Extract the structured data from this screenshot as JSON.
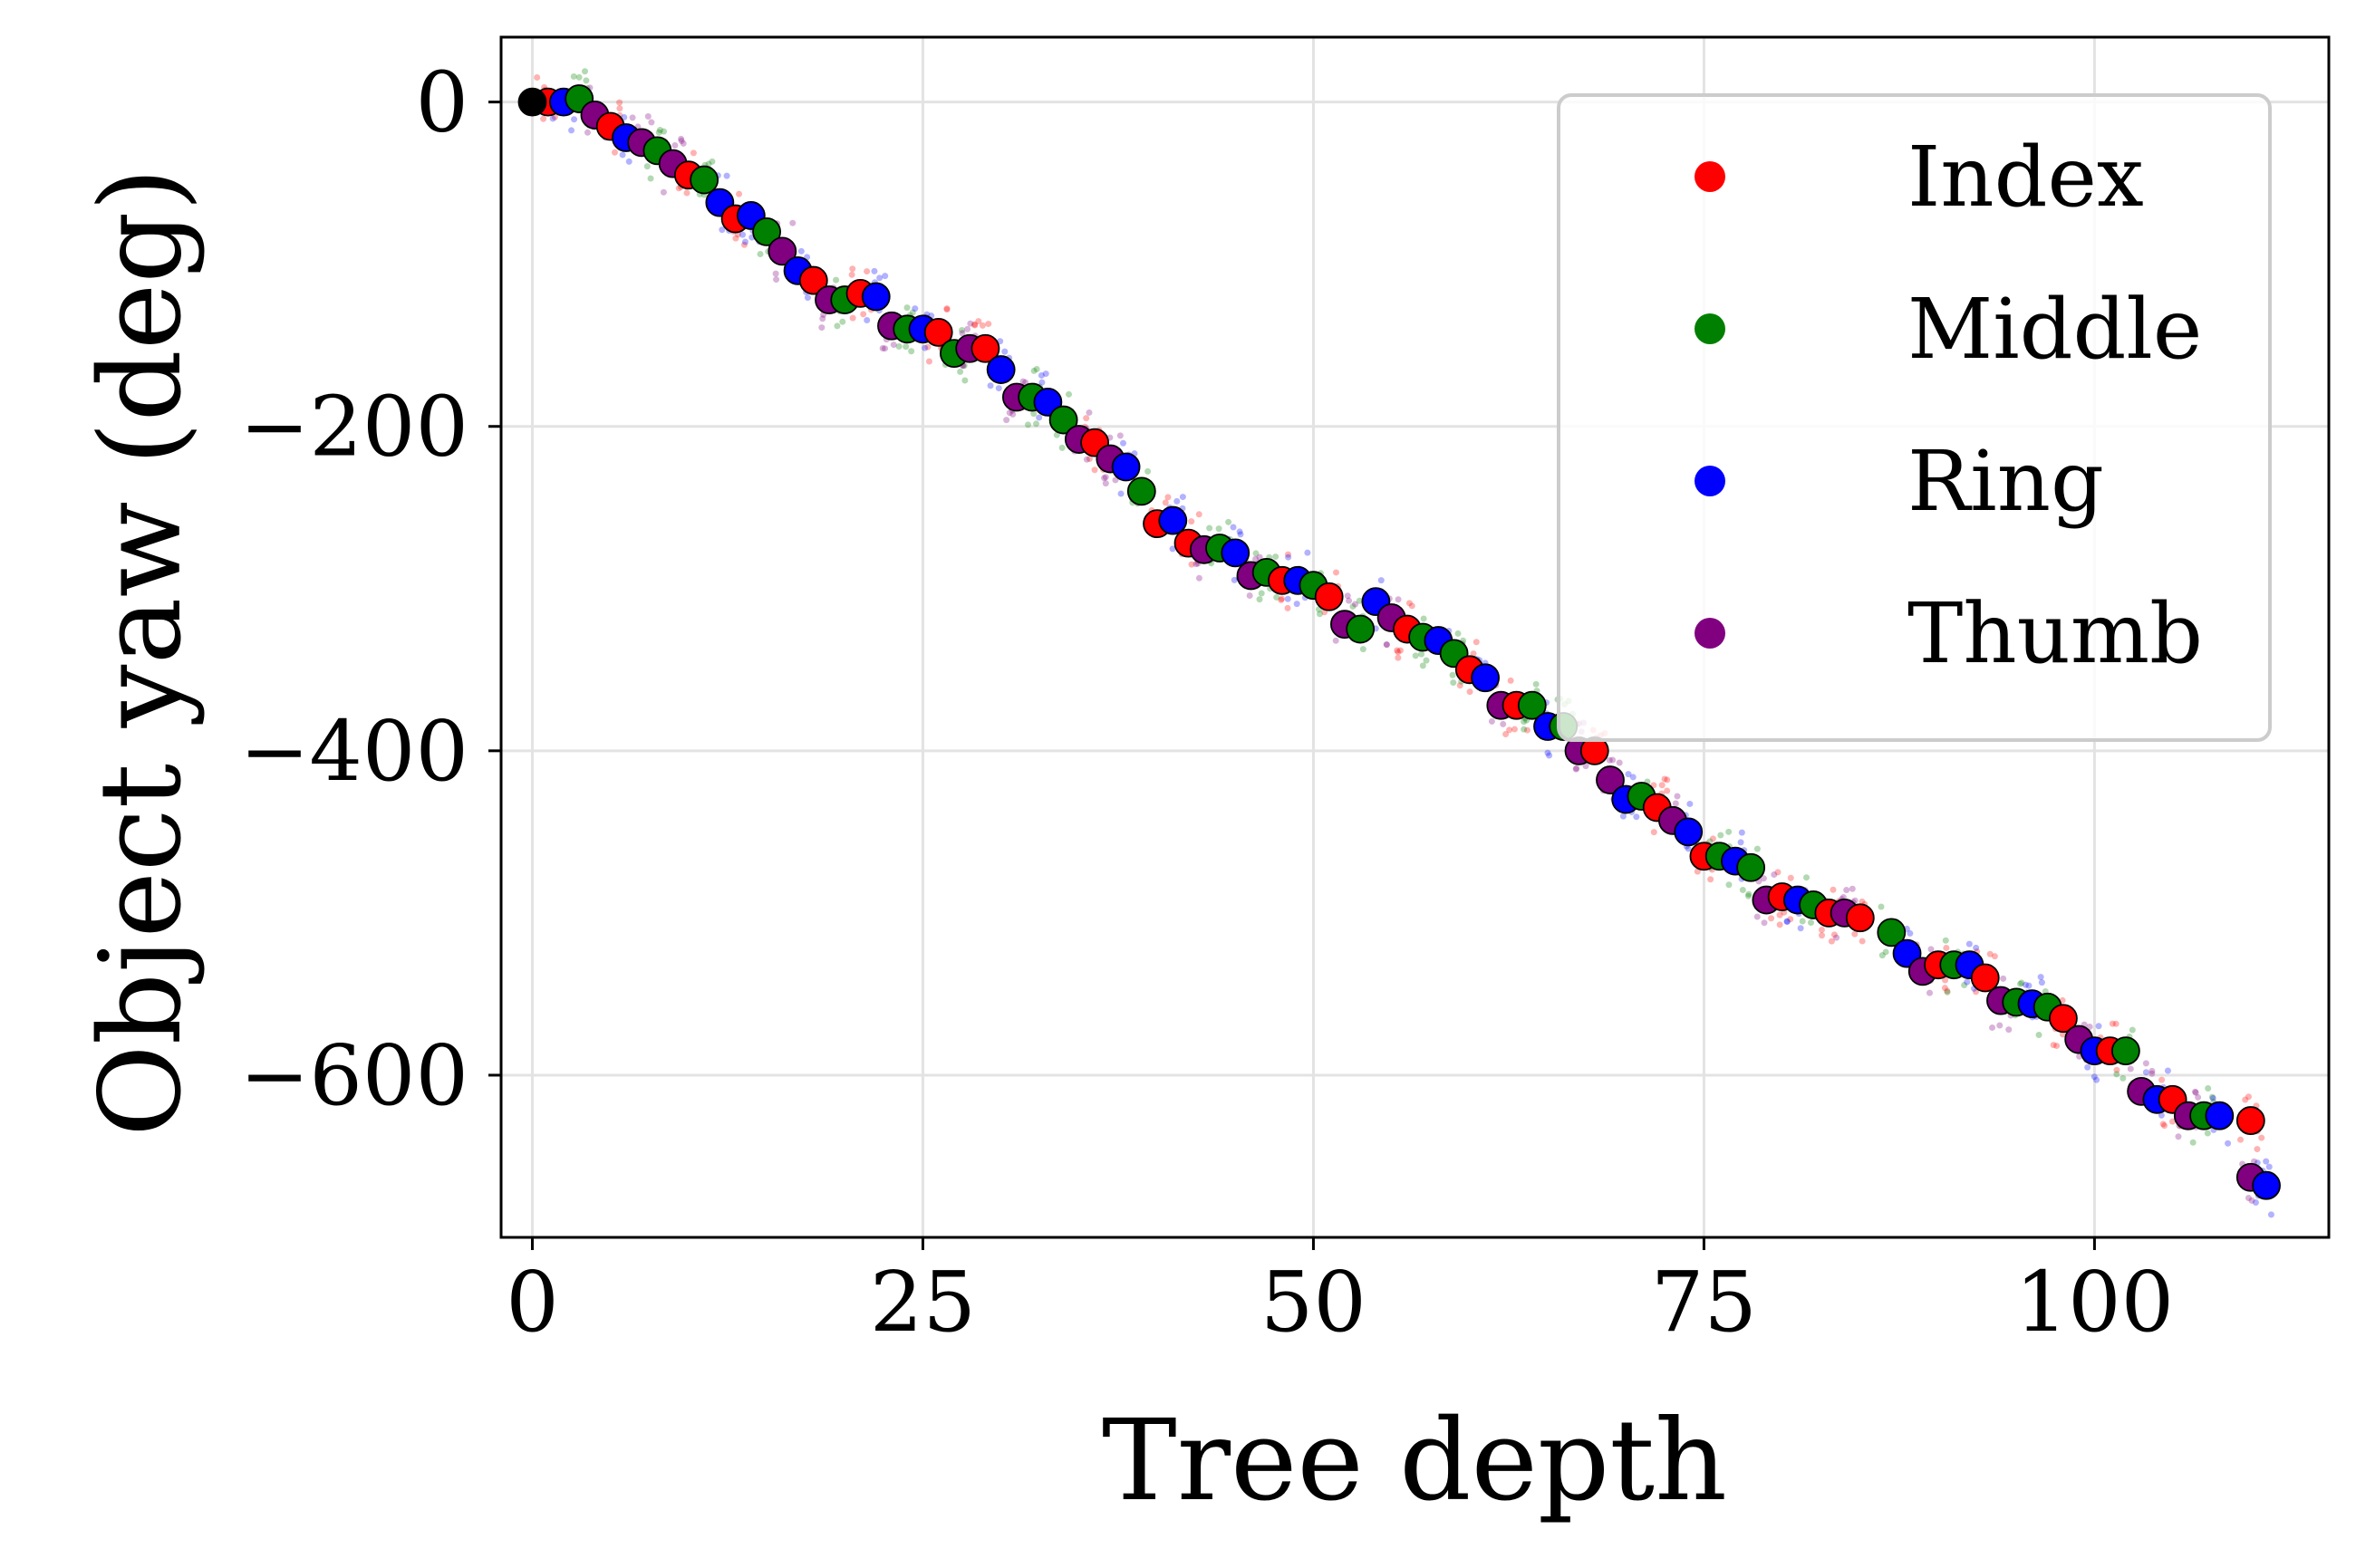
{
  "chart_data": {
    "type": "scatter",
    "xlabel": "Tree depth",
    "ylabel": "Object yaw (deg)",
    "xlim": [
      -2,
      115
    ],
    "ylim": [
      -700,
      40
    ],
    "xticks": [
      0,
      25,
      50,
      75,
      100
    ],
    "xtick_labels": [
      "0",
      "25",
      "50",
      "75",
      "100"
    ],
    "yticks": [
      0,
      -200,
      -400,
      -600
    ],
    "ytick_labels": [
      "0",
      "−200",
      "−400",
      "−600"
    ],
    "grid": true,
    "legend_position": "top-right",
    "root": {
      "x": 0,
      "y": 0,
      "color": "#000000"
    },
    "series": [
      {
        "name": "Index",
        "color": "#ff0000",
        "points": [
          [
            1,
            0
          ],
          [
            5,
            -15
          ],
          [
            10,
            -45
          ],
          [
            13,
            -72
          ],
          [
            18,
            -110
          ],
          [
            21,
            -118
          ],
          [
            26,
            -142
          ],
          [
            29,
            -152
          ],
          [
            36,
            -210
          ],
          [
            40,
            -260
          ],
          [
            42,
            -272
          ],
          [
            48,
            -295
          ],
          [
            51,
            -305
          ],
          [
            56,
            -325
          ],
          [
            60,
            -350
          ],
          [
            63,
            -372
          ],
          [
            68,
            -400
          ],
          [
            72,
            -435
          ],
          [
            75,
            -465
          ],
          [
            80,
            -490
          ],
          [
            83,
            -500
          ],
          [
            85,
            -503
          ],
          [
            90,
            -532
          ],
          [
            93,
            -540
          ],
          [
            98,
            -565
          ],
          [
            101,
            -585
          ],
          [
            105,
            -615
          ],
          [
            110,
            -628
          ]
        ]
      },
      {
        "name": "Middle",
        "color": "#008000",
        "points": [
          [
            3,
            2
          ],
          [
            8,
            -30
          ],
          [
            11,
            -48
          ],
          [
            15,
            -80
          ],
          [
            20,
            -122
          ],
          [
            24,
            -140
          ],
          [
            27,
            -155
          ],
          [
            32,
            -182
          ],
          [
            34,
            -196
          ],
          [
            39,
            -240
          ],
          [
            44,
            -275
          ],
          [
            47,
            -290
          ],
          [
            50,
            -298
          ],
          [
            53,
            -325
          ],
          [
            57,
            -330
          ],
          [
            59,
            -340
          ],
          [
            64,
            -372
          ],
          [
            66,
            -385
          ],
          [
            71,
            -428
          ],
          [
            76,
            -465
          ],
          [
            78,
            -472
          ],
          [
            82,
            -495
          ],
          [
            87,
            -512
          ],
          [
            91,
            -532
          ],
          [
            95,
            -555
          ],
          [
            97,
            -558
          ],
          [
            102,
            -585
          ],
          [
            107,
            -625
          ]
        ]
      },
      {
        "name": "Ring",
        "color": "#0000ff",
        "points": [
          [
            2,
            0
          ],
          [
            6,
            -22
          ],
          [
            12,
            -62
          ],
          [
            14,
            -70
          ],
          [
            17,
            -104
          ],
          [
            22,
            -120
          ],
          [
            25,
            -140
          ],
          [
            30,
            -165
          ],
          [
            33,
            -185
          ],
          [
            38,
            -225
          ],
          [
            41,
            -258
          ],
          [
            45,
            -278
          ],
          [
            49,
            -295
          ],
          [
            54,
            -308
          ],
          [
            58,
            -332
          ],
          [
            61,
            -355
          ],
          [
            65,
            -385
          ],
          [
            70,
            -430
          ],
          [
            74,
            -450
          ],
          [
            77,
            -468
          ],
          [
            81,
            -492
          ],
          [
            88,
            -525
          ],
          [
            92,
            -532
          ],
          [
            96,
            -556
          ],
          [
            100,
            -585
          ],
          [
            104,
            -615
          ],
          [
            108,
            -625
          ],
          [
            111,
            -668
          ]
        ]
      },
      {
        "name": "Thumb",
        "color": "#800080",
        "points": [
          [
            4,
            -8
          ],
          [
            7,
            -25
          ],
          [
            9,
            -38
          ],
          [
            16,
            -92
          ],
          [
            19,
            -122
          ],
          [
            23,
            -138
          ],
          [
            28,
            -152
          ],
          [
            31,
            -182
          ],
          [
            35,
            -208
          ],
          [
            37,
            -220
          ],
          [
            43,
            -276
          ],
          [
            46,
            -292
          ],
          [
            52,
            -322
          ],
          [
            55,
            -318
          ],
          [
            62,
            -372
          ],
          [
            67,
            -400
          ],
          [
            69,
            -418
          ],
          [
            73,
            -443
          ],
          [
            79,
            -492
          ],
          [
            84,
            -500
          ],
          [
            89,
            -536
          ],
          [
            94,
            -554
          ],
          [
            99,
            -578
          ],
          [
            103,
            -610
          ],
          [
            106,
            -625
          ],
          [
            110,
            -663
          ]
        ]
      }
    ]
  }
}
